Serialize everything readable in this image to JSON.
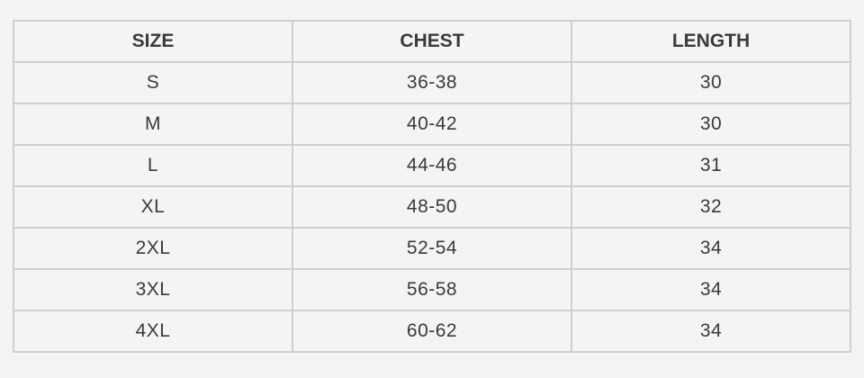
{
  "table": {
    "headers": [
      "SIZE",
      "CHEST",
      "LENGTH"
    ],
    "rows": [
      [
        "S",
        "36-38",
        "30"
      ],
      [
        "M",
        "40-42",
        "30"
      ],
      [
        "L",
        "44-46",
        "31"
      ],
      [
        "XL",
        "48-50",
        "32"
      ],
      [
        "2XL",
        "52-54",
        "34"
      ],
      [
        "3XL",
        "56-58",
        "34"
      ],
      [
        "4XL",
        "60-62",
        "34"
      ]
    ]
  }
}
